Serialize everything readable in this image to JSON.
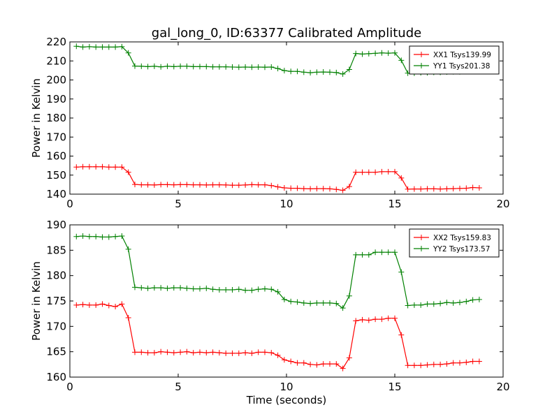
{
  "title": "gal_long_0, ID:63377 Calibrated Amplitude",
  "xlabel": "Time (seconds)",
  "chart_data": [
    {
      "type": "line",
      "ylabel": "Power in Kelvin",
      "xlim": [
        0,
        20
      ],
      "ylim": [
        140,
        220
      ],
      "xticks": [
        0,
        5,
        10,
        15,
        20
      ],
      "yticks": [
        140,
        150,
        160,
        170,
        180,
        190,
        200,
        210,
        220
      ],
      "legend_position": "top-right",
      "x": [
        0.3,
        0.6,
        0.9,
        1.2,
        1.5,
        1.8,
        2.1,
        2.4,
        2.7,
        3.0,
        3.3,
        3.6,
        3.9,
        4.2,
        4.5,
        4.8,
        5.1,
        5.4,
        5.7,
        6.0,
        6.3,
        6.6,
        6.9,
        7.2,
        7.5,
        7.8,
        8.1,
        8.4,
        8.7,
        9.0,
        9.3,
        9.6,
        9.9,
        10.2,
        10.5,
        10.8,
        11.1,
        11.4,
        11.7,
        12.0,
        12.3,
        12.6,
        12.9,
        13.2,
        13.5,
        13.8,
        14.1,
        14.4,
        14.7,
        15.0,
        15.3,
        15.6,
        15.9,
        16.2,
        16.5,
        16.8,
        17.1,
        17.4,
        17.7,
        18.0,
        18.3,
        18.6,
        18.9
      ],
      "series": [
        {
          "name": "XX1 Tsys139.99",
          "color": "#ff0000",
          "values": [
            154.2,
            154.4,
            154.4,
            154.4,
            154.4,
            154.2,
            154.2,
            154.2,
            151.5,
            145.1,
            144.9,
            144.9,
            144.8,
            145.0,
            145.0,
            144.9,
            145.0,
            145.0,
            144.9,
            144.9,
            144.8,
            144.9,
            144.9,
            144.8,
            144.7,
            144.7,
            144.8,
            145.0,
            144.9,
            144.9,
            144.5,
            143.8,
            143.3,
            143.1,
            143.1,
            142.9,
            142.8,
            142.9,
            142.9,
            142.8,
            142.5,
            142.0,
            144.0,
            151.5,
            151.5,
            151.5,
            151.5,
            151.8,
            151.8,
            151.8,
            148.5,
            142.6,
            142.7,
            142.7,
            142.8,
            142.8,
            142.7,
            142.8,
            142.9,
            143.0,
            143.1,
            143.5,
            143.3
          ]
        },
        {
          "name": "YY1 Tsys201.38",
          "color": "#008000",
          "values": [
            217.7,
            217.3,
            217.5,
            217.3,
            217.3,
            217.3,
            217.3,
            217.5,
            214.2,
            207.3,
            207.2,
            207.0,
            207.2,
            206.9,
            207.2,
            207.0,
            207.2,
            207.2,
            207.0,
            207.0,
            207.0,
            206.9,
            206.9,
            206.9,
            206.8,
            206.7,
            206.8,
            206.7,
            206.8,
            206.7,
            206.8,
            206.0,
            204.9,
            204.5,
            204.5,
            204.1,
            203.8,
            204.1,
            204.2,
            204.1,
            203.9,
            203.1,
            205.5,
            213.9,
            213.6,
            213.8,
            214.0,
            214.2,
            214.1,
            214.2,
            210.3,
            203.6,
            203.6,
            203.8,
            203.8,
            204.0,
            204.0,
            204.2,
            204.3,
            204.3,
            204.6,
            205.1,
            204.9
          ]
        }
      ]
    },
    {
      "type": "line",
      "ylabel": "Power in Kelvin",
      "xlim": [
        0,
        20
      ],
      "ylim": [
        160,
        190
      ],
      "xticks": [
        0,
        5,
        10,
        15,
        20
      ],
      "yticks": [
        160,
        165,
        170,
        175,
        180,
        185,
        190
      ],
      "legend_position": "top-right",
      "x": [
        0.3,
        0.6,
        0.9,
        1.2,
        1.5,
        1.8,
        2.1,
        2.4,
        2.7,
        3.0,
        3.3,
        3.6,
        3.9,
        4.2,
        4.5,
        4.8,
        5.1,
        5.4,
        5.7,
        6.0,
        6.3,
        6.6,
        6.9,
        7.2,
        7.5,
        7.8,
        8.1,
        8.4,
        8.7,
        9.0,
        9.3,
        9.6,
        9.9,
        10.2,
        10.5,
        10.8,
        11.1,
        11.4,
        11.7,
        12.0,
        12.3,
        12.6,
        12.9,
        13.2,
        13.5,
        13.8,
        14.1,
        14.4,
        14.7,
        15.0,
        15.3,
        15.6,
        15.9,
        16.2,
        16.5,
        16.8,
        17.1,
        17.4,
        17.7,
        18.0,
        18.3,
        18.6,
        18.9
      ],
      "series": [
        {
          "name": "XX2 Tsys159.83",
          "color": "#ff0000",
          "values": [
            174.2,
            174.3,
            174.2,
            174.2,
            174.4,
            174.1,
            173.9,
            174.4,
            171.7,
            164.9,
            164.9,
            164.8,
            164.8,
            165.0,
            164.9,
            164.8,
            164.9,
            165.0,
            164.8,
            164.9,
            164.8,
            164.9,
            164.8,
            164.7,
            164.7,
            164.7,
            164.8,
            164.7,
            164.9,
            164.9,
            164.8,
            164.3,
            163.4,
            163.1,
            162.8,
            162.8,
            162.5,
            162.4,
            162.6,
            162.6,
            162.6,
            161.7,
            163.8,
            171.1,
            171.3,
            171.2,
            171.4,
            171.4,
            171.6,
            171.6,
            168.3,
            162.3,
            162.3,
            162.3,
            162.4,
            162.5,
            162.5,
            162.6,
            162.8,
            162.8,
            162.9,
            163.1,
            163.1
          ]
        },
        {
          "name": "YY2 Tsys173.57",
          "color": "#008000",
          "values": [
            187.7,
            187.8,
            187.7,
            187.7,
            187.6,
            187.6,
            187.7,
            187.8,
            185.2,
            177.7,
            177.6,
            177.5,
            177.6,
            177.6,
            177.5,
            177.6,
            177.6,
            177.5,
            177.4,
            177.4,
            177.5,
            177.3,
            177.2,
            177.2,
            177.2,
            177.3,
            177.1,
            177.1,
            177.3,
            177.4,
            177.3,
            176.8,
            175.3,
            174.9,
            174.8,
            174.6,
            174.5,
            174.6,
            174.6,
            174.6,
            174.5,
            173.6,
            176.0,
            184.1,
            184.1,
            184.1,
            184.6,
            184.6,
            184.6,
            184.6,
            180.7,
            174.1,
            174.2,
            174.2,
            174.4,
            174.4,
            174.5,
            174.7,
            174.6,
            174.7,
            174.9,
            175.2,
            175.3
          ]
        }
      ]
    }
  ]
}
